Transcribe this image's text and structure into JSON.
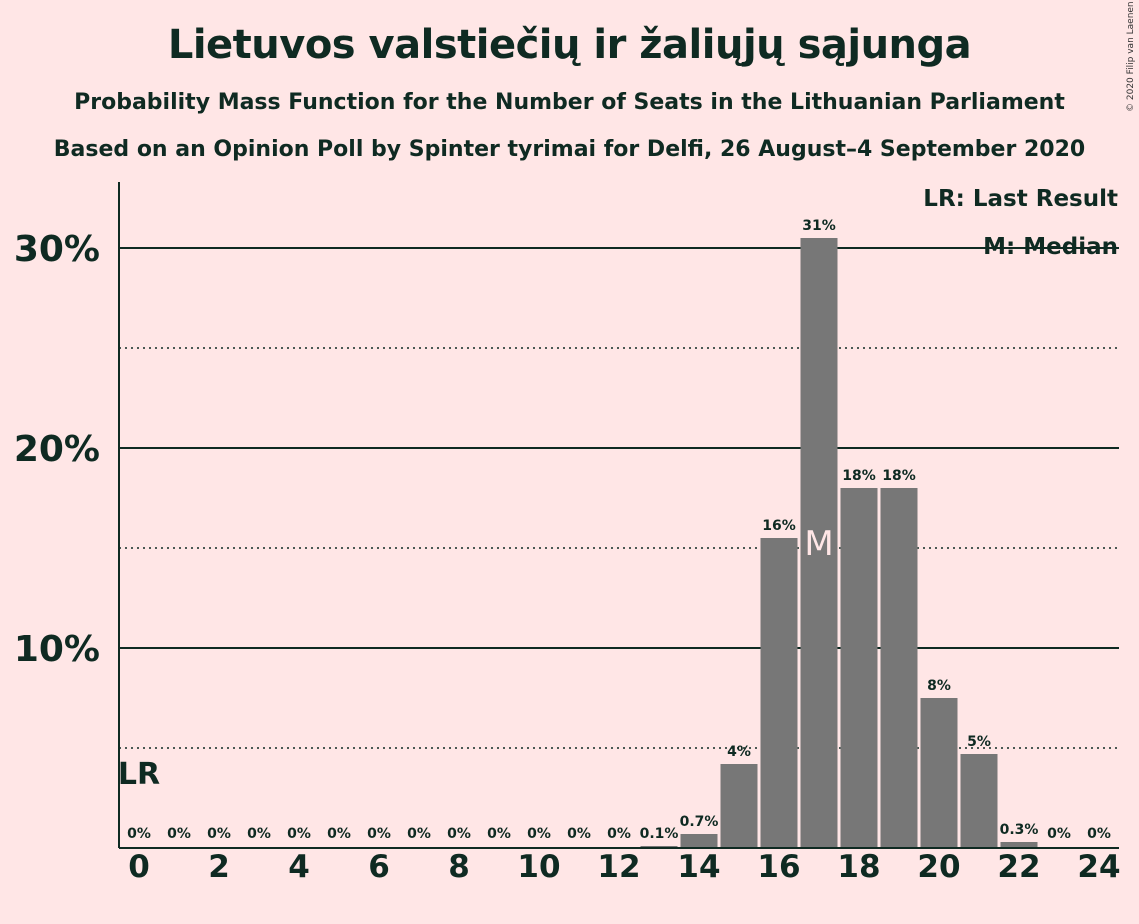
{
  "header": {
    "title": "Lietuvos valstiečių ir žaliųjų sąjunga",
    "subtitle1": "Probability Mass Function for the Number of Seats in the Lithuanian Parliament",
    "subtitle2": "Based on an Opinion Poll by Spinter tyrimai for Delfi, 26 August–4 September 2020",
    "copyright": "© 2020 Filip van Laenen"
  },
  "legend": {
    "last_result": "LR: Last Result",
    "median": "M: Median"
  },
  "colors": {
    "background": "#ffe6e6",
    "bar": "#777777",
    "text": "#0f2a22"
  },
  "chart_data": {
    "type": "bar",
    "x": [
      0,
      1,
      2,
      3,
      4,
      5,
      6,
      7,
      8,
      9,
      10,
      11,
      12,
      13,
      14,
      15,
      16,
      17,
      18,
      19,
      20,
      21,
      22,
      23,
      24
    ],
    "values": [
      0,
      0,
      0,
      0,
      0,
      0,
      0,
      0,
      0,
      0,
      0,
      0,
      0,
      0.1,
      0.7,
      4.2,
      15.5,
      30.5,
      18.0,
      18.0,
      7.5,
      4.7,
      0.3,
      0,
      0
    ],
    "data_labels": [
      "0%",
      "0%",
      "0%",
      "0%",
      "0%",
      "0%",
      "0%",
      "0%",
      "0%",
      "0%",
      "0%",
      "0%",
      "0%",
      "0.1%",
      "0.7%",
      "4%",
      "16%",
      "31%",
      "18%",
      "18%",
      "8%",
      "5%",
      "0.3%",
      "0%",
      "0%"
    ],
    "x_ticks": [
      "0",
      "2",
      "4",
      "6",
      "8",
      "10",
      "12",
      "14",
      "16",
      "18",
      "20",
      "22",
      "24"
    ],
    "y_ticks": [
      "10%",
      "20%",
      "30%"
    ],
    "ylim": [
      0,
      33
    ],
    "major_grid": [
      10,
      20,
      30
    ],
    "minor_grid": [
      5,
      15,
      25
    ],
    "last_result_seat": 0,
    "last_result_label": "LR",
    "median_seat": 17,
    "median_label": "M"
  }
}
